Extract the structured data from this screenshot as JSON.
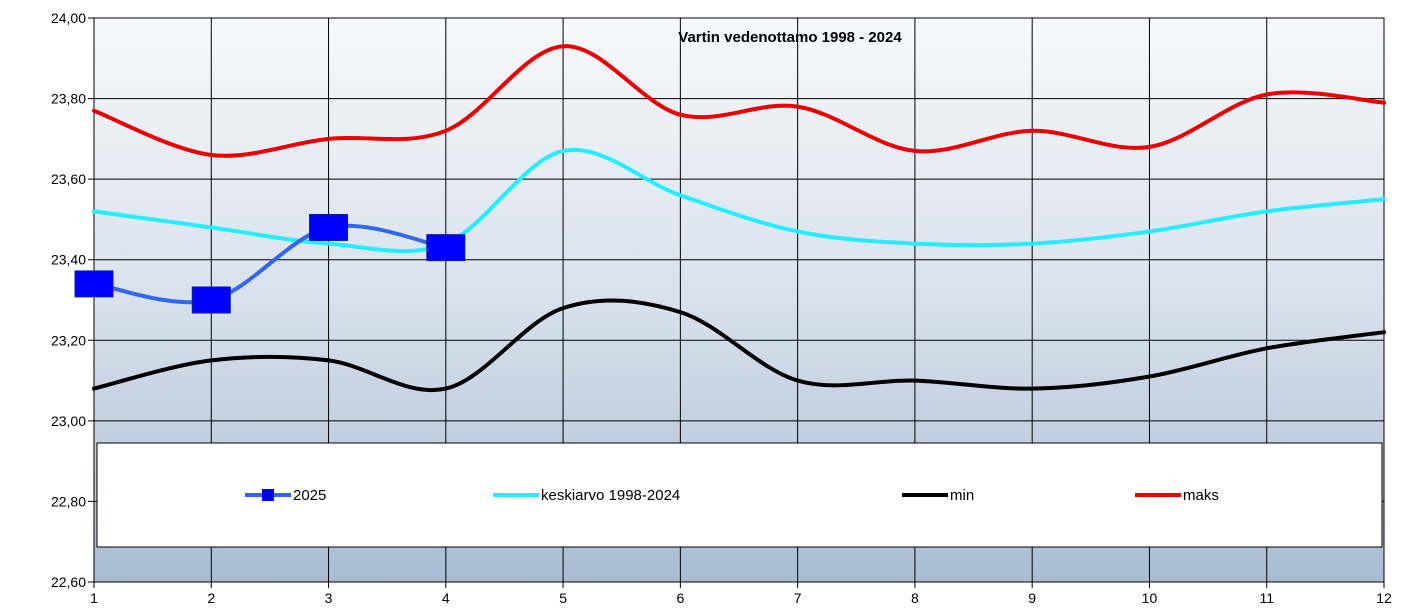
{
  "chart_data": {
    "type": "line",
    "title": "Vartin vedenottamo 1998 - 2024",
    "xlabel": "",
    "ylabel": "",
    "categories": [
      "1",
      "2",
      "3",
      "4",
      "5",
      "6",
      "7",
      "8",
      "9",
      "10",
      "11",
      "12"
    ],
    "ylim": [
      22.6,
      24.0
    ],
    "yticks": [
      "22,60",
      "22,80",
      "23,00",
      "23,20",
      "23,40",
      "23,60",
      "23,80",
      "24,00"
    ],
    "grid": true,
    "legend_position": "bottom",
    "series": [
      {
        "name": "2025",
        "color": "#0000ff",
        "line_color": "#3366ee",
        "marker": "square",
        "values": [
          23.34,
          23.3,
          23.48,
          23.43,
          null,
          null,
          null,
          null,
          null,
          null,
          null,
          null
        ]
      },
      {
        "name": "keskiarvo 1998-2024",
        "color": "#22eeff",
        "marker": "none",
        "values": [
          23.52,
          23.48,
          23.44,
          23.44,
          23.67,
          23.56,
          23.47,
          23.44,
          23.44,
          23.47,
          23.52,
          23.55
        ]
      },
      {
        "name": "min",
        "color": "#000000",
        "marker": "none",
        "values": [
          23.08,
          23.15,
          23.15,
          23.08,
          23.28,
          23.27,
          23.1,
          23.1,
          23.08,
          23.11,
          23.18,
          23.22
        ]
      },
      {
        "name": "maks",
        "color": "#ee0000",
        "marker": "none",
        "values": [
          23.77,
          23.66,
          23.7,
          23.72,
          23.93,
          23.76,
          23.78,
          23.67,
          23.72,
          23.68,
          23.81,
          23.79
        ]
      }
    ]
  }
}
